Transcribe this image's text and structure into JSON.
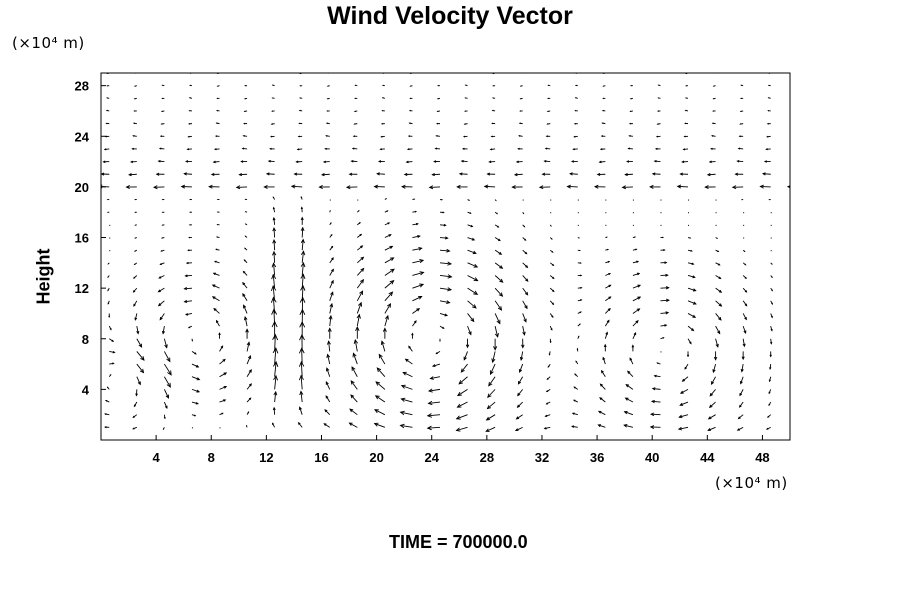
{
  "chart_data": {
    "type": "vector-field",
    "title": "Wind Velocity Vector",
    "xlabel": "",
    "ylabel": "Height",
    "x_unit": "(×10⁴ m)",
    "y_unit": "(×10⁴ m)",
    "xlim": [
      0,
      50
    ],
    "ylim": [
      0,
      29
    ],
    "xticks": [
      "4",
      "8",
      "12",
      "16",
      "20",
      "24",
      "28",
      "32",
      "36",
      "40",
      "44",
      "48"
    ],
    "yticks": [
      "4",
      "8",
      "12",
      "16",
      "20",
      "24",
      "28"
    ],
    "grid": false,
    "grid_spacing": {
      "dx": 2,
      "dy": 1
    },
    "arrow_scale": 0.09,
    "features": {
      "upper_layer": {
        "y_range": [
          20,
          29
        ],
        "description": "weak westward flow, strongest near y=20"
      },
      "vortices": [
        {
          "x": 24,
          "y": 8,
          "radius": 7,
          "sense": "clockwise",
          "strength": 30
        },
        {
          "x": 41,
          "y": 7,
          "radius": 6,
          "sense": "clockwise",
          "strength": 22
        },
        {
          "x": 7,
          "y": 8,
          "radius": 5,
          "sense": "counterclockwise",
          "strength": 20
        },
        {
          "x": 2,
          "y": 5,
          "radius": 3,
          "sense": "clockwise",
          "strength": 15
        }
      ],
      "updrafts": [
        {
          "x": 12.5,
          "strength": 25
        },
        {
          "x": 14.5,
          "strength": 25
        }
      ]
    }
  },
  "footer": {
    "time_label": "TIME = 700000.0"
  }
}
